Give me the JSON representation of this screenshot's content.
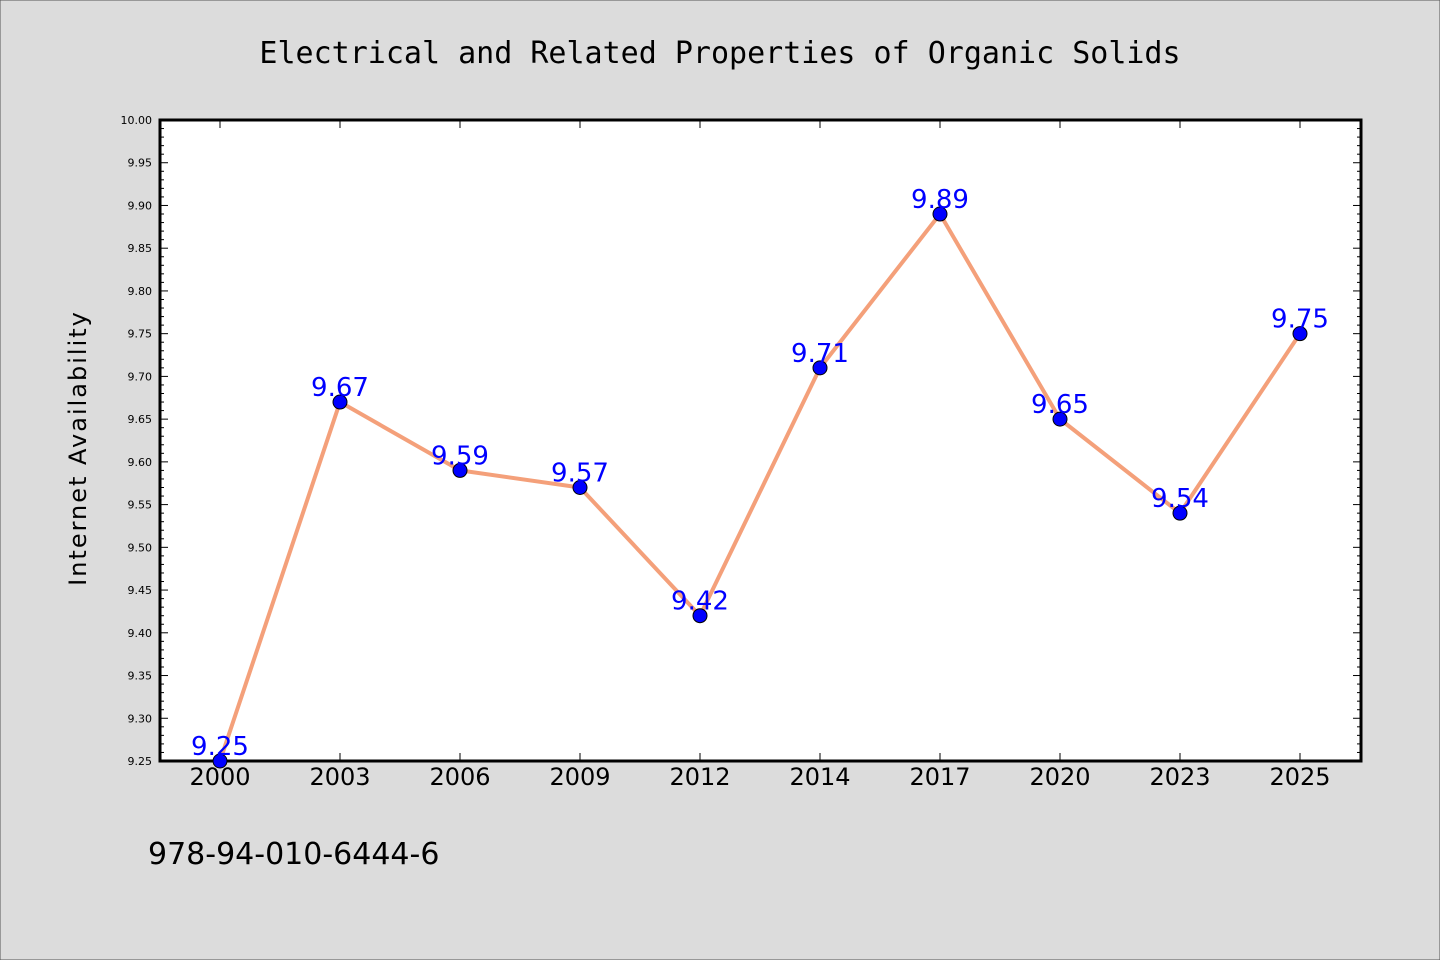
{
  "colors": {
    "background": "#dcdcdc",
    "plot_background": "#ffffff",
    "line": "#f4a07a",
    "marker": "#0000ff",
    "data_label": "#0000ff",
    "axis": "#000000"
  },
  "footer": {
    "isbn": "978-94-010-6444-6"
  },
  "chart_data": {
    "type": "line",
    "title": "Electrical and Related Properties of Organic Solids",
    "xlabel": "",
    "ylabel": "Internet Availability",
    "categories": [
      "2000",
      "2003",
      "2006",
      "2009",
      "2012",
      "2014",
      "2017",
      "2020",
      "2023",
      "2025"
    ],
    "series": [
      {
        "values": [
          9.25,
          9.67,
          9.59,
          9.57,
          9.42,
          9.71,
          9.89,
          9.65,
          9.54,
          9.75
        ]
      }
    ],
    "data_labels": [
      "9.25",
      "9.67",
      "9.59",
      "9.57",
      "9.42",
      "9.71",
      "9.89",
      "9.65",
      "9.54",
      "9.75"
    ],
    "ylim": [
      9.25,
      10.0
    ],
    "yticks": [
      "9.25",
      "9.30",
      "9.35",
      "9.40",
      "9.45",
      "9.50",
      "9.55",
      "9.60",
      "9.65",
      "9.70",
      "9.75",
      "9.80",
      "9.85",
      "9.90",
      "9.95",
      "10.00"
    ],
    "grid": false,
    "legend": "none"
  }
}
